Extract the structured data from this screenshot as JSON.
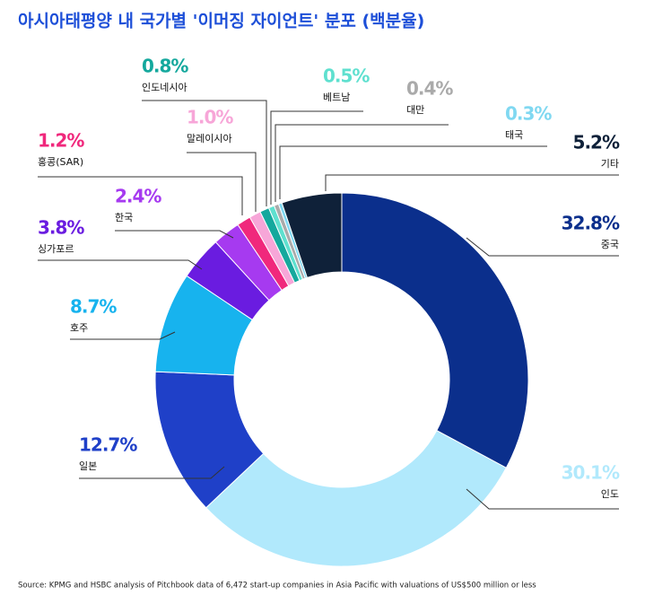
{
  "chart_data": {
    "type": "donut",
    "title": "아시아태평양 내 국가별 '이머징 자이언트' 분포 (백분율)",
    "source": "Source: KPMG and HSBC analysis of Pitchbook data of 6,472 start-up companies in Asia Pacific with valuations of US$500 million or less",
    "categories": [
      "중국",
      "인도",
      "일본",
      "호주",
      "싱가포르",
      "한국",
      "홍콩(SAR)",
      "말레이시아",
      "인도네시아",
      "베트남",
      "대만",
      "태국",
      "기타"
    ],
    "values": [
      32.8,
      30.1,
      12.7,
      8.7,
      3.8,
      2.4,
      1.2,
      1.0,
      0.8,
      0.5,
      0.4,
      0.3,
      5.2
    ],
    "value_labels": [
      "32.8%",
      "30.1%",
      "12.7%",
      "8.7%",
      "3.8%",
      "2.4%",
      "1.2%",
      "1.0%",
      "0.8%",
      "0.5%",
      "0.4%",
      "0.3%",
      "5.2%"
    ],
    "colors": [
      "#0b2f8c",
      "#b1e9fc",
      "#1f40c8",
      "#17b3ee",
      "#6a1ce0",
      "#a63af0",
      "#f0287c",
      "#f7a6d8",
      "#14a89d",
      "#5fe0cf",
      "#aaaaaa",
      "#80d8f1",
      "#0f2139"
    ]
  }
}
